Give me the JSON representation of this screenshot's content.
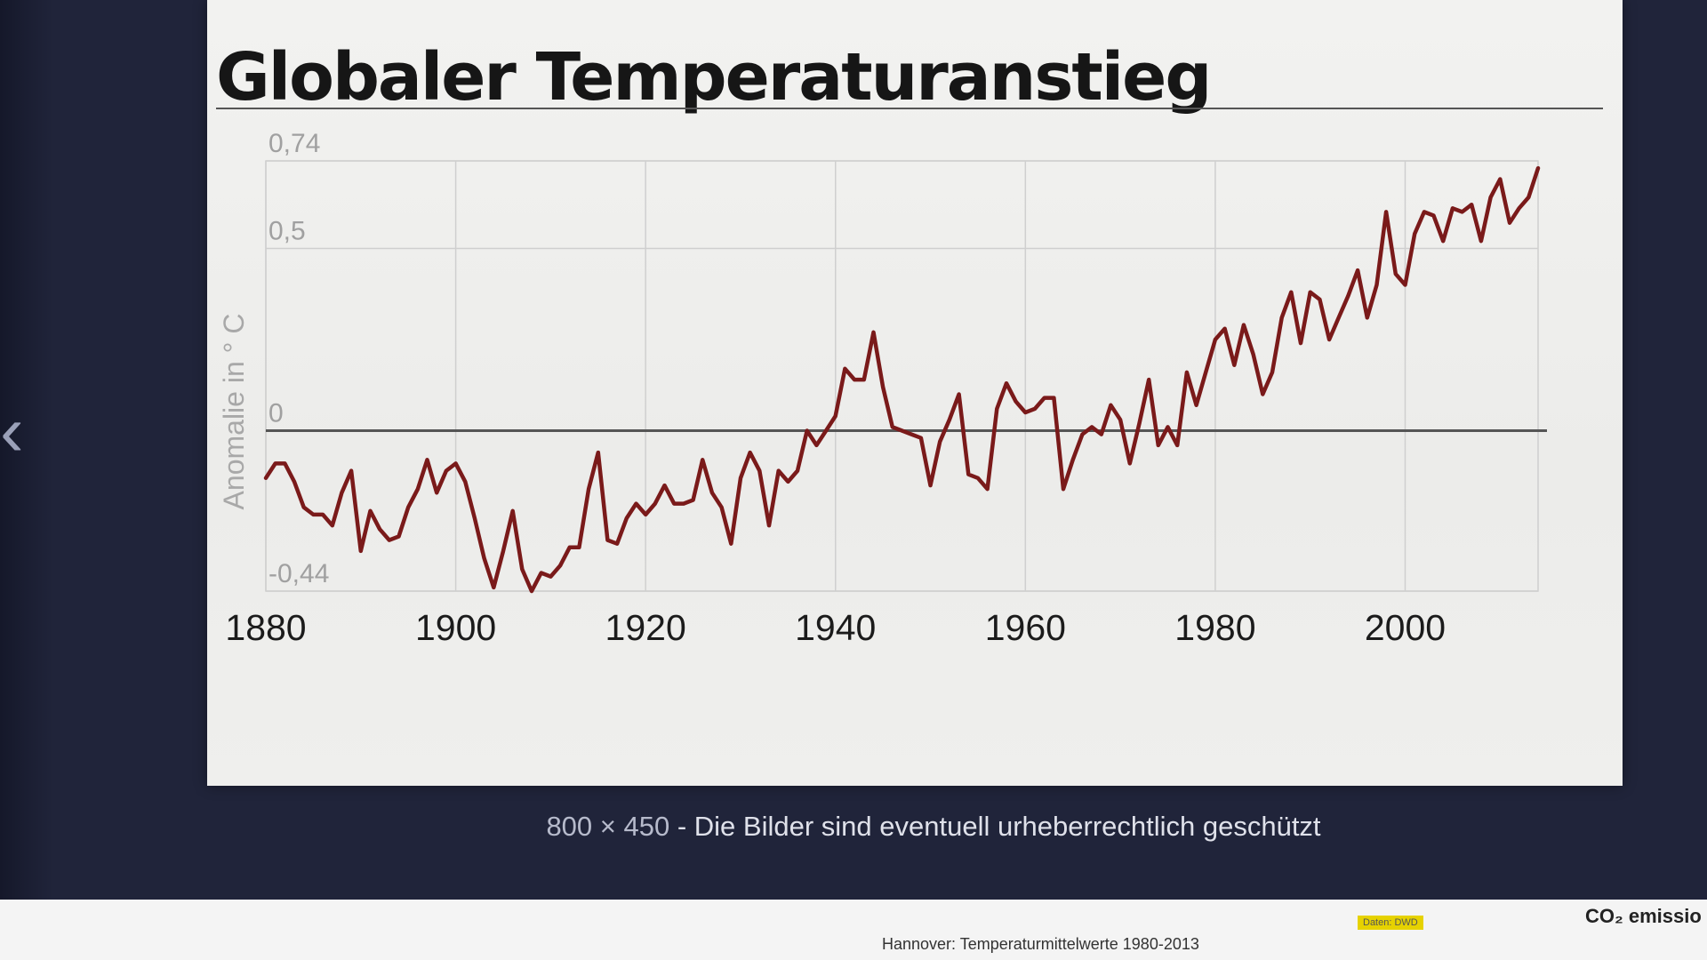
{
  "navigation": {
    "prev_icon": "chevron-left-icon",
    "prev_glyph": "‹"
  },
  "image_caption": {
    "dimensions": "800 × 450",
    "separator": " - ",
    "notice": "Die Bilder sind eventuell urheberrechtlich geschützt"
  },
  "related_strip": {
    "image_caption": "Hannover: Temperaturmittelwerte 1980-2013",
    "source_badge": "Daten: DWD",
    "next_image_label": "CO₂ emissio"
  },
  "chart_data": {
    "type": "line",
    "title": "Globaler Temperaturanstieg",
    "xlabel": "",
    "ylabel": "Anomalie in ° C",
    "xlim": [
      1880,
      2014
    ],
    "ylim": [
      -0.44,
      0.74
    ],
    "x_ticks": [
      1880,
      1900,
      1920,
      1940,
      1960,
      1980,
      2000
    ],
    "y_ticks": [
      {
        "value": 0.74,
        "label": "0,74"
      },
      {
        "value": 0.5,
        "label": "0,5"
      },
      {
        "value": 0,
        "label": "0"
      },
      {
        "value": -0.44,
        "label": "-0,44"
      }
    ],
    "grid": true,
    "legend": "none",
    "line_color": "#7a1a1a",
    "series": [
      {
        "x": [
          1880,
          1881,
          1882,
          1883,
          1884,
          1885,
          1886,
          1887,
          1888,
          1889,
          1890,
          1891,
          1892,
          1893,
          1894,
          1895,
          1896,
          1897,
          1898,
          1899,
          1900,
          1901,
          1902,
          1903,
          1904,
          1905,
          1906,
          1907,
          1908,
          1909,
          1910,
          1911,
          1912,
          1913,
          1914,
          1915,
          1916,
          1917,
          1918,
          1919,
          1920,
          1921,
          1922,
          1923,
          1924,
          1925,
          1926,
          1927,
          1928,
          1929,
          1930,
          1931,
          1932,
          1933,
          1934,
          1935,
          1936,
          1937,
          1938,
          1939,
          1940,
          1941,
          1942,
          1943,
          1944,
          1945,
          1946,
          1947,
          1948,
          1949,
          1950,
          1951,
          1952,
          1953,
          1954,
          1955,
          1956,
          1957,
          1958,
          1959,
          1960,
          1961,
          1962,
          1963,
          1964,
          1965,
          1966,
          1967,
          1968,
          1969,
          1970,
          1971,
          1972,
          1973,
          1974,
          1975,
          1976,
          1977,
          1978,
          1979,
          1980,
          1981,
          1982,
          1983,
          1984,
          1985,
          1986,
          1987,
          1988,
          1989,
          1990,
          1991,
          1992,
          1993,
          1994,
          1995,
          1996,
          1997,
          1998,
          1999,
          2000,
          2001,
          2002,
          2003,
          2004,
          2005,
          2006,
          2007,
          2008,
          2009,
          2010,
          2011,
          2012,
          2013,
          2014
        ],
        "values": [
          -0.13,
          -0.09,
          -0.09,
          -0.14,
          -0.21,
          -0.23,
          -0.23,
          -0.26,
          -0.17,
          -0.11,
          -0.33,
          -0.22,
          -0.27,
          -0.3,
          -0.29,
          -0.21,
          -0.16,
          -0.08,
          -0.17,
          -0.11,
          -0.09,
          -0.14,
          -0.24,
          -0.35,
          -0.43,
          -0.33,
          -0.22,
          -0.38,
          -0.44,
          -0.39,
          -0.4,
          -0.37,
          -0.32,
          -0.32,
          -0.16,
          -0.06,
          -0.3,
          -0.31,
          -0.24,
          -0.2,
          -0.23,
          -0.2,
          -0.15,
          -0.2,
          -0.2,
          -0.19,
          -0.08,
          -0.17,
          -0.21,
          -0.31,
          -0.13,
          -0.06,
          -0.11,
          -0.26,
          -0.11,
          -0.14,
          -0.11,
          0.0,
          -0.04,
          -0.0,
          0.04,
          0.17,
          0.14,
          0.14,
          0.27,
          0.12,
          0.01,
          0.0,
          -0.01,
          -0.02,
          -0.15,
          -0.03,
          0.03,
          0.1,
          -0.12,
          -0.13,
          -0.16,
          0.06,
          0.13,
          0.08,
          0.05,
          0.06,
          0.09,
          0.09,
          -0.16,
          -0.08,
          -0.01,
          0.01,
          -0.01,
          0.07,
          0.03,
          -0.09,
          0.02,
          0.14,
          -0.04,
          0.01,
          -0.04,
          0.16,
          0.07,
          0.16,
          0.25,
          0.28,
          0.18,
          0.29,
          0.21,
          0.1,
          0.16,
          0.31,
          0.38,
          0.24,
          0.38,
          0.36,
          0.25,
          0.31,
          0.37,
          0.44,
          0.31,
          0.4,
          0.6,
          0.43,
          0.4,
          0.54,
          0.6,
          0.59,
          0.52,
          0.61,
          0.6,
          0.62,
          0.52,
          0.64,
          0.69,
          0.57,
          0.61,
          0.64,
          0.72
        ]
      }
    ]
  }
}
